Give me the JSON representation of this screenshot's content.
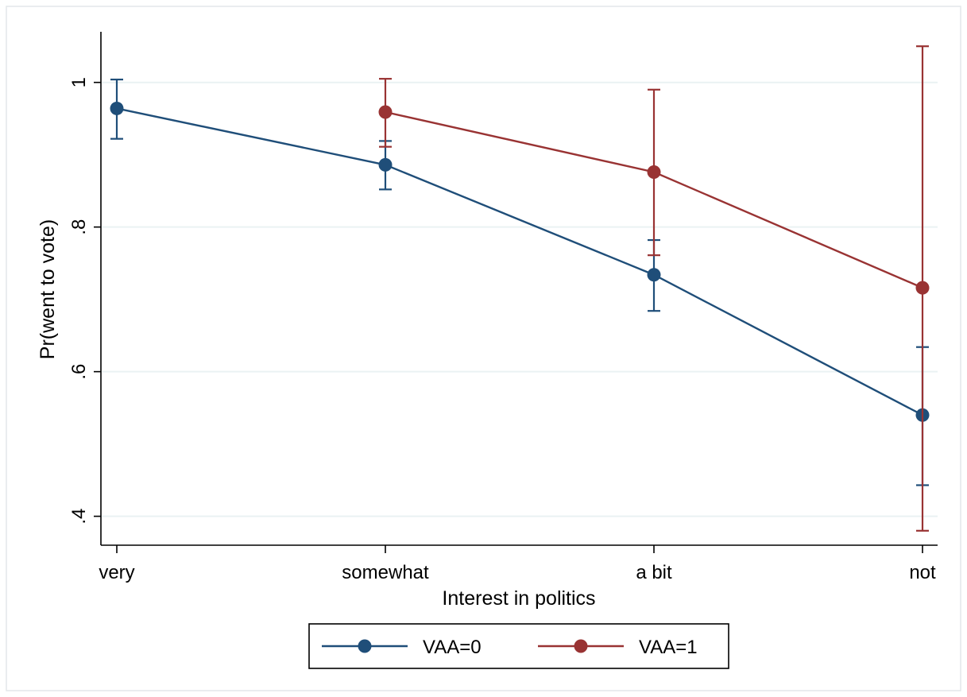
{
  "chart_data": {
    "type": "line",
    "xlabel": "Interest in politics",
    "ylabel": "Pr(went to vote)",
    "categories": [
      "very",
      "somewhat",
      "a bit",
      "not"
    ],
    "ylim": [
      0.36,
      1.07
    ],
    "yticks": [
      {
        "value": 0.4,
        "label": ".4"
      },
      {
        "value": 0.6,
        "label": ".6"
      },
      {
        "value": 0.8,
        "label": ".8"
      },
      {
        "value": 1.0,
        "label": "1"
      }
    ],
    "grid": true,
    "legend_position": "bottom",
    "series": [
      {
        "name": "VAA=0",
        "color": "#1f4e79",
        "values": [
          0.964,
          0.886,
          0.734,
          0.54
        ],
        "ci_low": [
          0.922,
          0.852,
          0.684,
          0.443
        ],
        "ci_high": [
          1.004,
          0.919,
          0.782,
          0.634
        ]
      },
      {
        "name": "VAA=1",
        "color": "#993333",
        "values": [
          null,
          0.959,
          0.876,
          0.716
        ],
        "ci_low": [
          null,
          0.911,
          0.761,
          0.38
        ],
        "ci_high": [
          null,
          1.005,
          0.99,
          1.05
        ]
      }
    ]
  }
}
